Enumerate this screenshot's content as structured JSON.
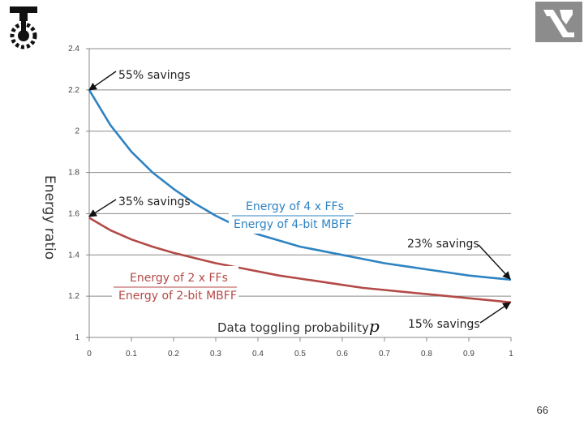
{
  "slide": {
    "number": "66"
  },
  "chart_data": {
    "type": "line",
    "xlabel": "Data toggling probability",
    "xlabel_var": "p",
    "ylabel": "Energy ratio",
    "xlim": [
      0,
      1
    ],
    "ylim": [
      1,
      2.4
    ],
    "xticks": [
      0,
      0.1,
      0.2,
      0.3,
      0.4,
      0.5,
      0.6,
      0.7,
      0.8,
      0.9,
      1
    ],
    "xtick_labels": [
      "0",
      "0.1",
      "0.2",
      "0.3",
      "0.4",
      "0.5",
      "0.6",
      "0.7",
      "0.8",
      "0.9",
      "1"
    ],
    "yticks": [
      1,
      1.2,
      1.4,
      1.6,
      1.8,
      2,
      2.2,
      2.4
    ],
    "ytick_labels": [
      "1",
      "1.2",
      "1.4",
      "1.6",
      "1.8",
      "2",
      "2.2",
      "2.4"
    ],
    "grid": true,
    "series": [
      {
        "name": "4 x FFs vs 4-bit MBFF",
        "color": "#2e83c2",
        "x": [
          0,
          0.05,
          0.1,
          0.15,
          0.2,
          0.25,
          0.3,
          0.35,
          0.4,
          0.45,
          0.5,
          0.55,
          0.6,
          0.65,
          0.7,
          0.75,
          0.8,
          0.85,
          0.9,
          0.95,
          1
        ],
        "y": [
          2.2,
          2.03,
          1.9,
          1.8,
          1.72,
          1.65,
          1.59,
          1.54,
          1.5,
          1.47,
          1.44,
          1.42,
          1.4,
          1.38,
          1.36,
          1.345,
          1.33,
          1.315,
          1.3,
          1.29,
          1.28
        ]
      },
      {
        "name": "2 x FFs vs 2-bit MBFF",
        "color": "#b34a47",
        "x": [
          0,
          0.05,
          0.1,
          0.15,
          0.2,
          0.25,
          0.3,
          0.35,
          0.4,
          0.45,
          0.5,
          0.55,
          0.6,
          0.65,
          0.7,
          0.75,
          0.8,
          0.85,
          0.9,
          0.95,
          1
        ],
        "y": [
          1.58,
          1.52,
          1.475,
          1.44,
          1.41,
          1.385,
          1.36,
          1.34,
          1.32,
          1.3,
          1.285,
          1.27,
          1.255,
          1.24,
          1.23,
          1.22,
          1.21,
          1.2,
          1.19,
          1.18,
          1.17
        ]
      }
    ],
    "annotations": {
      "top_left": "55% savings",
      "mid_left": "35% savings",
      "right_upper": "23% savings",
      "right_lower": "15% savings"
    },
    "fractions": {
      "blue_numerator": "Energy of 4 x FFs",
      "blue_denominator": "Energy of 4-bit MBFF",
      "red_numerator": "Energy of 2 x FFs",
      "red_denominator": "Energy of 2-bit MBFF"
    }
  }
}
